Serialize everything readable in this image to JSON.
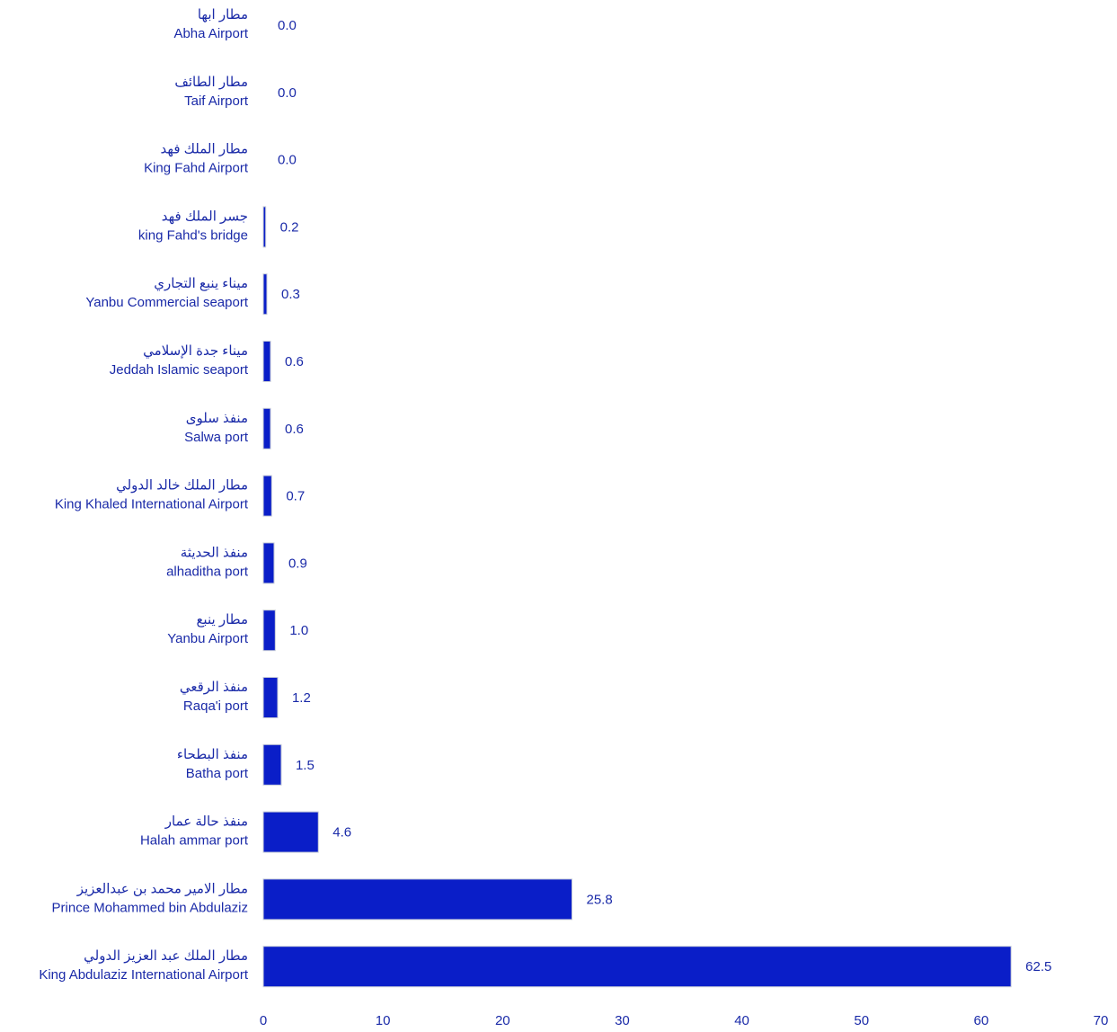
{
  "chart_data": {
    "type": "hbar",
    "color": "#0a1ec8",
    "categories": [
      [
        "مطار ابها",
        "Abha Airport"
      ],
      [
        "مطار الطائف",
        "Taif Airport"
      ],
      [
        "مطار الملك فهد",
        "King Fahd Airport"
      ],
      [
        "جسر الملك فهد",
        "king Fahd's bridge"
      ],
      [
        "ميناء ينبع التجاري",
        "Yanbu Commercial seaport"
      ],
      [
        "ميناء جدة الإسلامي",
        "Jeddah Islamic seaport"
      ],
      [
        "منفذ سلوى",
        "Salwa port"
      ],
      [
        "مطار الملك خالد الدولي",
        "King Khaled International Airport"
      ],
      [
        "منفذ الحديثة",
        "alhaditha port"
      ],
      [
        "مطار ينبع",
        "Yanbu Airport"
      ],
      [
        "منفذ الرقعي",
        "Raqa'i port"
      ],
      [
        "منفذ البطحاء",
        "Batha port"
      ],
      [
        "منفذ حالة عمار",
        "Halah ammar port"
      ],
      [
        "مطار الامير محمد بن عبدالعزيز",
        "Prince Mohammed bin Abdulaziz"
      ],
      [
        "مطار الملك عبد العزيز الدولي",
        "King Abdulaziz International Airport"
      ]
    ],
    "values": [
      0,
      0,
      0,
      0.2,
      0.3,
      0.6,
      0.6,
      0.7,
      0.9,
      1.0,
      1.2,
      1.5,
      4.6,
      25.8,
      62.5
    ],
    "value_labels": [
      "0.0",
      "0.0",
      "0.0",
      "0.2",
      "0.3",
      "0.6",
      "0.6",
      "0.7",
      "0.9",
      "1.0",
      "1.2",
      "1.5",
      "4.6",
      "25.8",
      "62.5"
    ],
    "xlim": [
      0,
      70
    ],
    "xticks": [
      0,
      10,
      20,
      30,
      40,
      50,
      60,
      70
    ]
  }
}
